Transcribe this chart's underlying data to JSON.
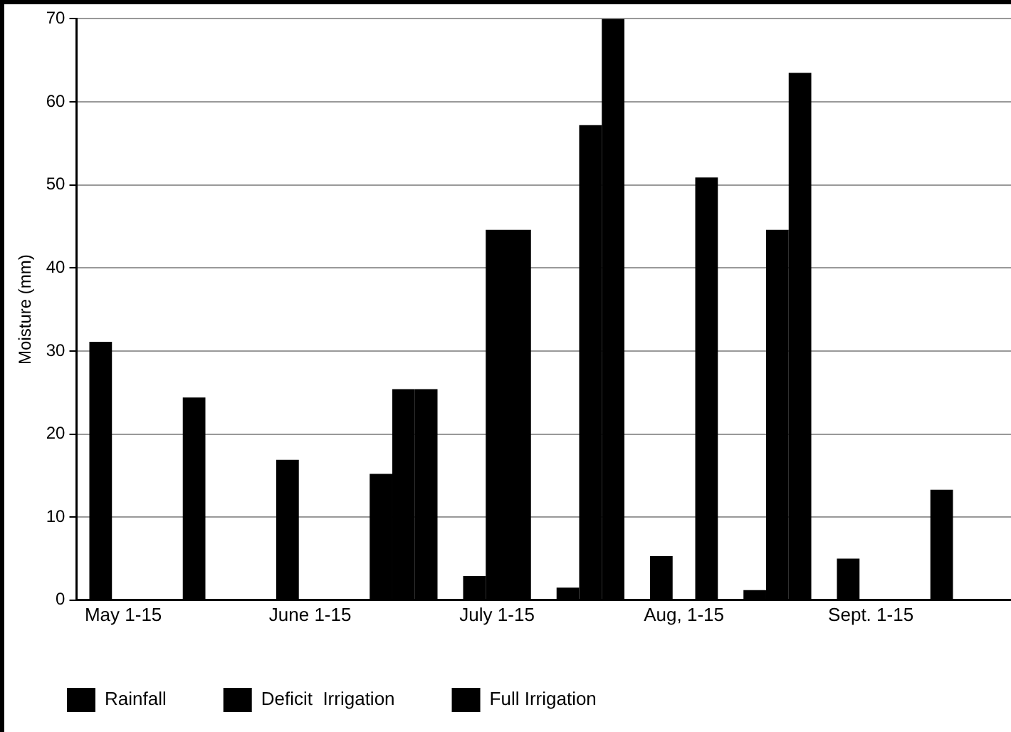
{
  "chart_data": {
    "type": "bar",
    "ylabel": "Moisture (mm)",
    "categories": [
      "May 1-15",
      null,
      "June 1-15",
      null,
      "July 1-15",
      null,
      "Aug, 1-15",
      null,
      "Sept. 1-15",
      null
    ],
    "series": [
      {
        "name": "Rainfall",
        "color": "#000000",
        "values": [
          31.1,
          24.4,
          16.9,
          15.2,
          2.9,
          1.5,
          5.3,
          1.2,
          5.0,
          13.3
        ]
      },
      {
        "name": "Deficit  Irrigation",
        "color": "#000000",
        "values": [
          0,
          0,
          0,
          25.4,
          44.6,
          57.2,
          0,
          44.6,
          0,
          0
        ]
      },
      {
        "name": "Full Irrigation",
        "color": "#000000",
        "values": [
          0,
          0,
          0,
          25.4,
          44.6,
          70,
          50.9,
          63.5,
          0,
          0
        ]
      }
    ],
    "ylim": [
      0,
      70
    ],
    "yticks": [
      0,
      10,
      20,
      30,
      40,
      50,
      60,
      70
    ],
    "grid": "y",
    "legend": "bottom"
  }
}
